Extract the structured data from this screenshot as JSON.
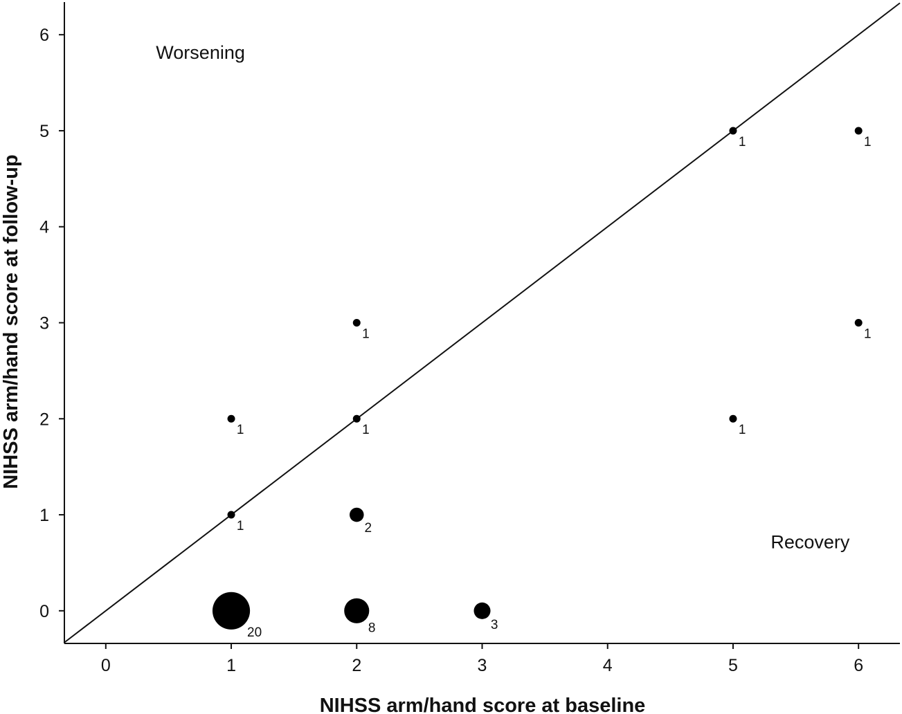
{
  "chart_data": {
    "type": "scatter",
    "xlabel": "NIHSS arm/hand score at baseline",
    "ylabel": "NIHSS arm/hand score at follow-up",
    "x_ticks": [
      "0",
      "1",
      "2",
      "3",
      "4",
      "5",
      "6"
    ],
    "y_ticks": [
      "0",
      "1",
      "2",
      "3",
      "4",
      "5",
      "6"
    ],
    "xlim": [
      -0.33,
      6.33
    ],
    "ylim": [
      -0.34,
      6.34
    ],
    "reference_line": {
      "type": "identity",
      "from": [
        -0.33,
        -0.33
      ],
      "to": [
        6.33,
        6.33
      ]
    },
    "annotations": [
      {
        "text": "Worsening",
        "x": 0.4,
        "y": 5.75
      },
      {
        "text": "Recovery",
        "x": 5.3,
        "y": 0.65
      }
    ],
    "points": [
      {
        "x": 1,
        "y": 0,
        "count": "20"
      },
      {
        "x": 2,
        "y": 0,
        "count": "8"
      },
      {
        "x": 3,
        "y": 0,
        "count": "3"
      },
      {
        "x": 1,
        "y": 1,
        "count": "1"
      },
      {
        "x": 2,
        "y": 1,
        "count": "2"
      },
      {
        "x": 1,
        "y": 2,
        "count": "1"
      },
      {
        "x": 2,
        "y": 2,
        "count": "1"
      },
      {
        "x": 5,
        "y": 2,
        "count": "1"
      },
      {
        "x": 2,
        "y": 3,
        "count": "1"
      },
      {
        "x": 6,
        "y": 3,
        "count": "1"
      },
      {
        "x": 5,
        "y": 5,
        "count": "1"
      },
      {
        "x": 6,
        "y": 5,
        "count": "1"
      }
    ],
    "grid": false,
    "legend": "none",
    "point_color": "#000000"
  }
}
